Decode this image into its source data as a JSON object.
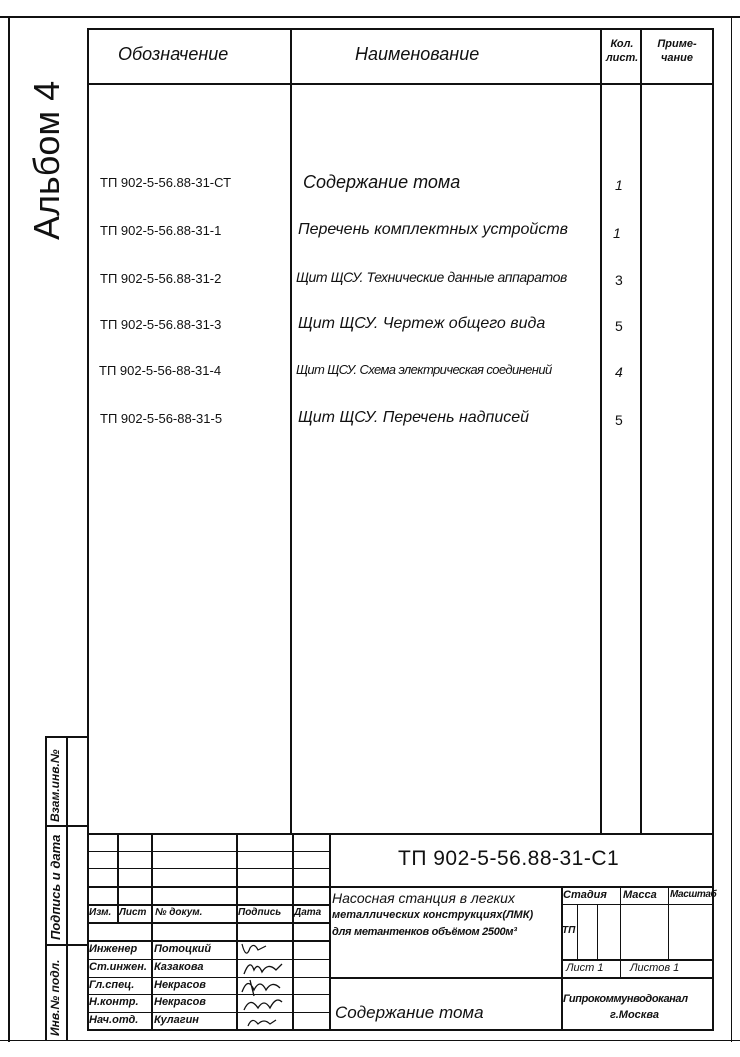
{
  "side": {
    "album": "Альбом 4",
    "stamp_replace": "Взам.инв.№",
    "stamp_sign_date": "Подпись и дата",
    "stamp_inv": "Инв.№ подл."
  },
  "table": {
    "headers": {
      "designation": "Обозначение",
      "name": "Наименование",
      "sheets_1": "Кол.",
      "sheets_2": "лист.",
      "note_1": "Приме-",
      "note_2": "чание"
    },
    "rows": [
      {
        "designation": "ТП 902-5-56.88-31-СТ",
        "name": "Содержание   тома",
        "sheets": "1"
      },
      {
        "designation": "ТП 902-5-56.88-31-1",
        "name": "Перечень комплектных устройств",
        "sheets": "1"
      },
      {
        "designation": "ТП 902-5-56.88-31-2",
        "name": "Щит ЩСУ. Технические данные аппаратов",
        "sheets": "3"
      },
      {
        "designation": "ТП 902-5-56.88-31-3",
        "name": "Щит ЩСУ.  Чертеж общего вида",
        "sheets": "5"
      },
      {
        "designation": "ТП 902-5-56-88-31-4",
        "name": "Щит ЩСУ. Схема электрическая соединений",
        "sheets": "4"
      },
      {
        "designation": "ТП 902-5-56-88-31-5",
        "name": "Щит ЩСУ.  Перечень надписей",
        "sheets": "5"
      }
    ]
  },
  "title_block": {
    "code": "ТП 902-5-56.88-31-С1",
    "col_headers": {
      "izm": "Изм.",
      "list": "Лист",
      "doc": "№ докум.",
      "sign": "Подпись",
      "date": "Дата"
    },
    "people": [
      {
        "role": "Инженер",
        "name": "Потоцкий"
      },
      {
        "role": "Ст.инжен.",
        "name": "Казакова"
      },
      {
        "role": "Гл.спец.",
        "name": "Некрасов"
      },
      {
        "role": "Н.контр.",
        "name": "Некрасов"
      },
      {
        "role": "Нач.отд.",
        "name": "Кулагин"
      }
    ],
    "project_1": "Насосная станция в легких",
    "project_2": "металлических конструкциях(ЛМК)",
    "project_3": "для метантенков объёмом 2500м³",
    "stage_label": "Стадия",
    "mass_label": "Масса",
    "scale_label": "Масштаб",
    "stage_value": "ТП",
    "sheet": "Лист 1",
    "sheets_total": "Листов 1",
    "doc_title": "Содержание   тома",
    "org_1": "Гипрокоммунводоканал",
    "org_2": "г.Москва"
  }
}
